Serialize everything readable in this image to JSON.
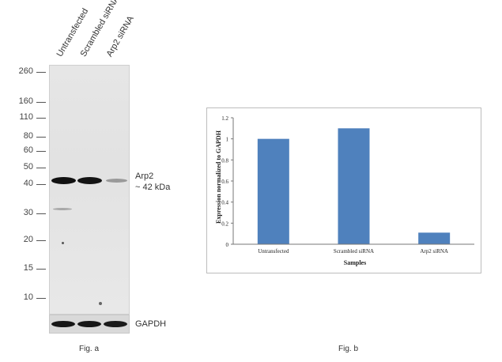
{
  "figure_a": {
    "lanes": [
      "Untransfected",
      "Scrambled siRNA",
      "Arp2 siRNA"
    ],
    "mw_markers": [
      "260",
      "160",
      "110",
      "80",
      "60",
      "50",
      "40",
      "30",
      "20",
      "15",
      "10"
    ],
    "band_label": "Arp2",
    "band_size": "~ 42 kDa",
    "loading_control": "GAPDH",
    "caption": "Fig. a"
  },
  "figure_b": {
    "caption": "Fig. b"
  },
  "chart_data": {
    "type": "bar",
    "categories": [
      "Untransfected",
      "Scrambled siRNA",
      "Arp2 siRNA"
    ],
    "values": [
      1.0,
      1.1,
      0.11
    ],
    "xlabel": "Samples",
    "ylabel": "Expression normalized to GAPDH",
    "ylim": [
      0,
      1.2
    ],
    "yticks": [
      "0",
      "0.2",
      "0.4",
      "0.6",
      "0.8",
      "1",
      "1.2"
    ],
    "bar_color": "#4f81bd",
    "grid": false
  }
}
